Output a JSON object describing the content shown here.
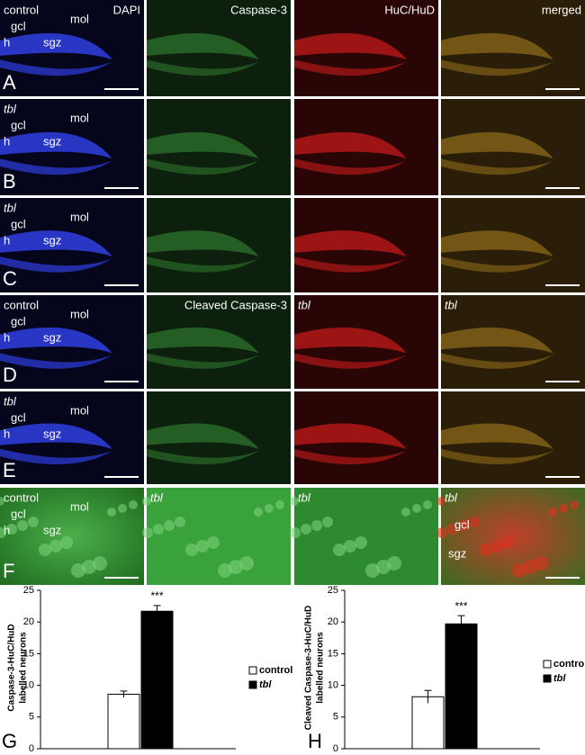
{
  "panels": [
    {
      "letter": "A",
      "cells": [
        {
          "genotype": "control",
          "stain": "DAPI",
          "labels": [
            "gcl",
            "mol",
            "h",
            "sgz"
          ]
        },
        {
          "stain": "Caspase-3"
        },
        {
          "stain": "HuC/HuD"
        },
        {
          "stain": "merged"
        }
      ]
    },
    {
      "letter": "B",
      "cells": [
        {
          "genotype": "tbl",
          "italic": true,
          "labels": [
            "gcl",
            "mol",
            "h",
            "sgz"
          ]
        },
        {},
        {},
        {}
      ]
    },
    {
      "letter": "C",
      "cells": [
        {
          "genotype": "tbl",
          "italic": true,
          "labels": [
            "gcl",
            "mol",
            "h",
            "sgz"
          ]
        },
        {},
        {},
        {}
      ]
    },
    {
      "letter": "D",
      "cells": [
        {
          "genotype": "control",
          "labels": [
            "gcl",
            "mol",
            "h",
            "sgz"
          ]
        },
        {
          "stain": "Cleaved Caspase-3"
        },
        {
          "genotype": "tbl",
          "italic": true
        },
        {
          "genotype": "tbl",
          "italic": true
        }
      ]
    },
    {
      "letter": "E",
      "cells": [
        {
          "genotype": "tbl",
          "italic": true,
          "labels": [
            "gcl",
            "mol",
            "h",
            "sgz"
          ]
        },
        {},
        {},
        {}
      ]
    },
    {
      "letter": "F",
      "cells": [
        {
          "genotype": "control",
          "labels": [
            "gcl",
            "mol",
            "h",
            "sgz"
          ]
        },
        {
          "genotype": "tbl",
          "italic": true
        },
        {
          "genotype": "tbl",
          "italic": true
        },
        {
          "genotype": "tbl",
          "italic": true,
          "labels": [
            "gcl",
            "sgz"
          ]
        }
      ]
    }
  ],
  "chart_data": [
    {
      "type": "bar",
      "letter": "G",
      "y_label": [
        "Caspase-3-HuC/HuD",
        "labelled neurons"
      ],
      "ylim": [
        0,
        25
      ],
      "yticks": [
        0,
        5,
        10,
        15,
        20,
        25
      ],
      "annotation": "***",
      "series": [
        {
          "name": "control",
          "color": "#ffffff",
          "values": [
            8.6
          ],
          "errors": [
            0.5
          ]
        },
        {
          "name": "tbl",
          "color": "#000000",
          "italic": true,
          "values": [
            21.7
          ],
          "errors": [
            0.9
          ]
        }
      ]
    },
    {
      "type": "bar",
      "letter": "H",
      "y_label": [
        "Cleaved Caspase-3-HuC/HuD",
        "labelled neurons"
      ],
      "ylim": [
        0,
        25
      ],
      "yticks": [
        0,
        5,
        10,
        15,
        20,
        25
      ],
      "annotation": "***",
      "series": [
        {
          "name": "control",
          "color": "#ffffff",
          "values": [
            8.2
          ],
          "errors": [
            1.0
          ]
        },
        {
          "name": "tbl",
          "color": "#000000",
          "italic": true,
          "values": [
            19.7
          ],
          "errors": [
            1.3
          ]
        }
      ]
    }
  ]
}
